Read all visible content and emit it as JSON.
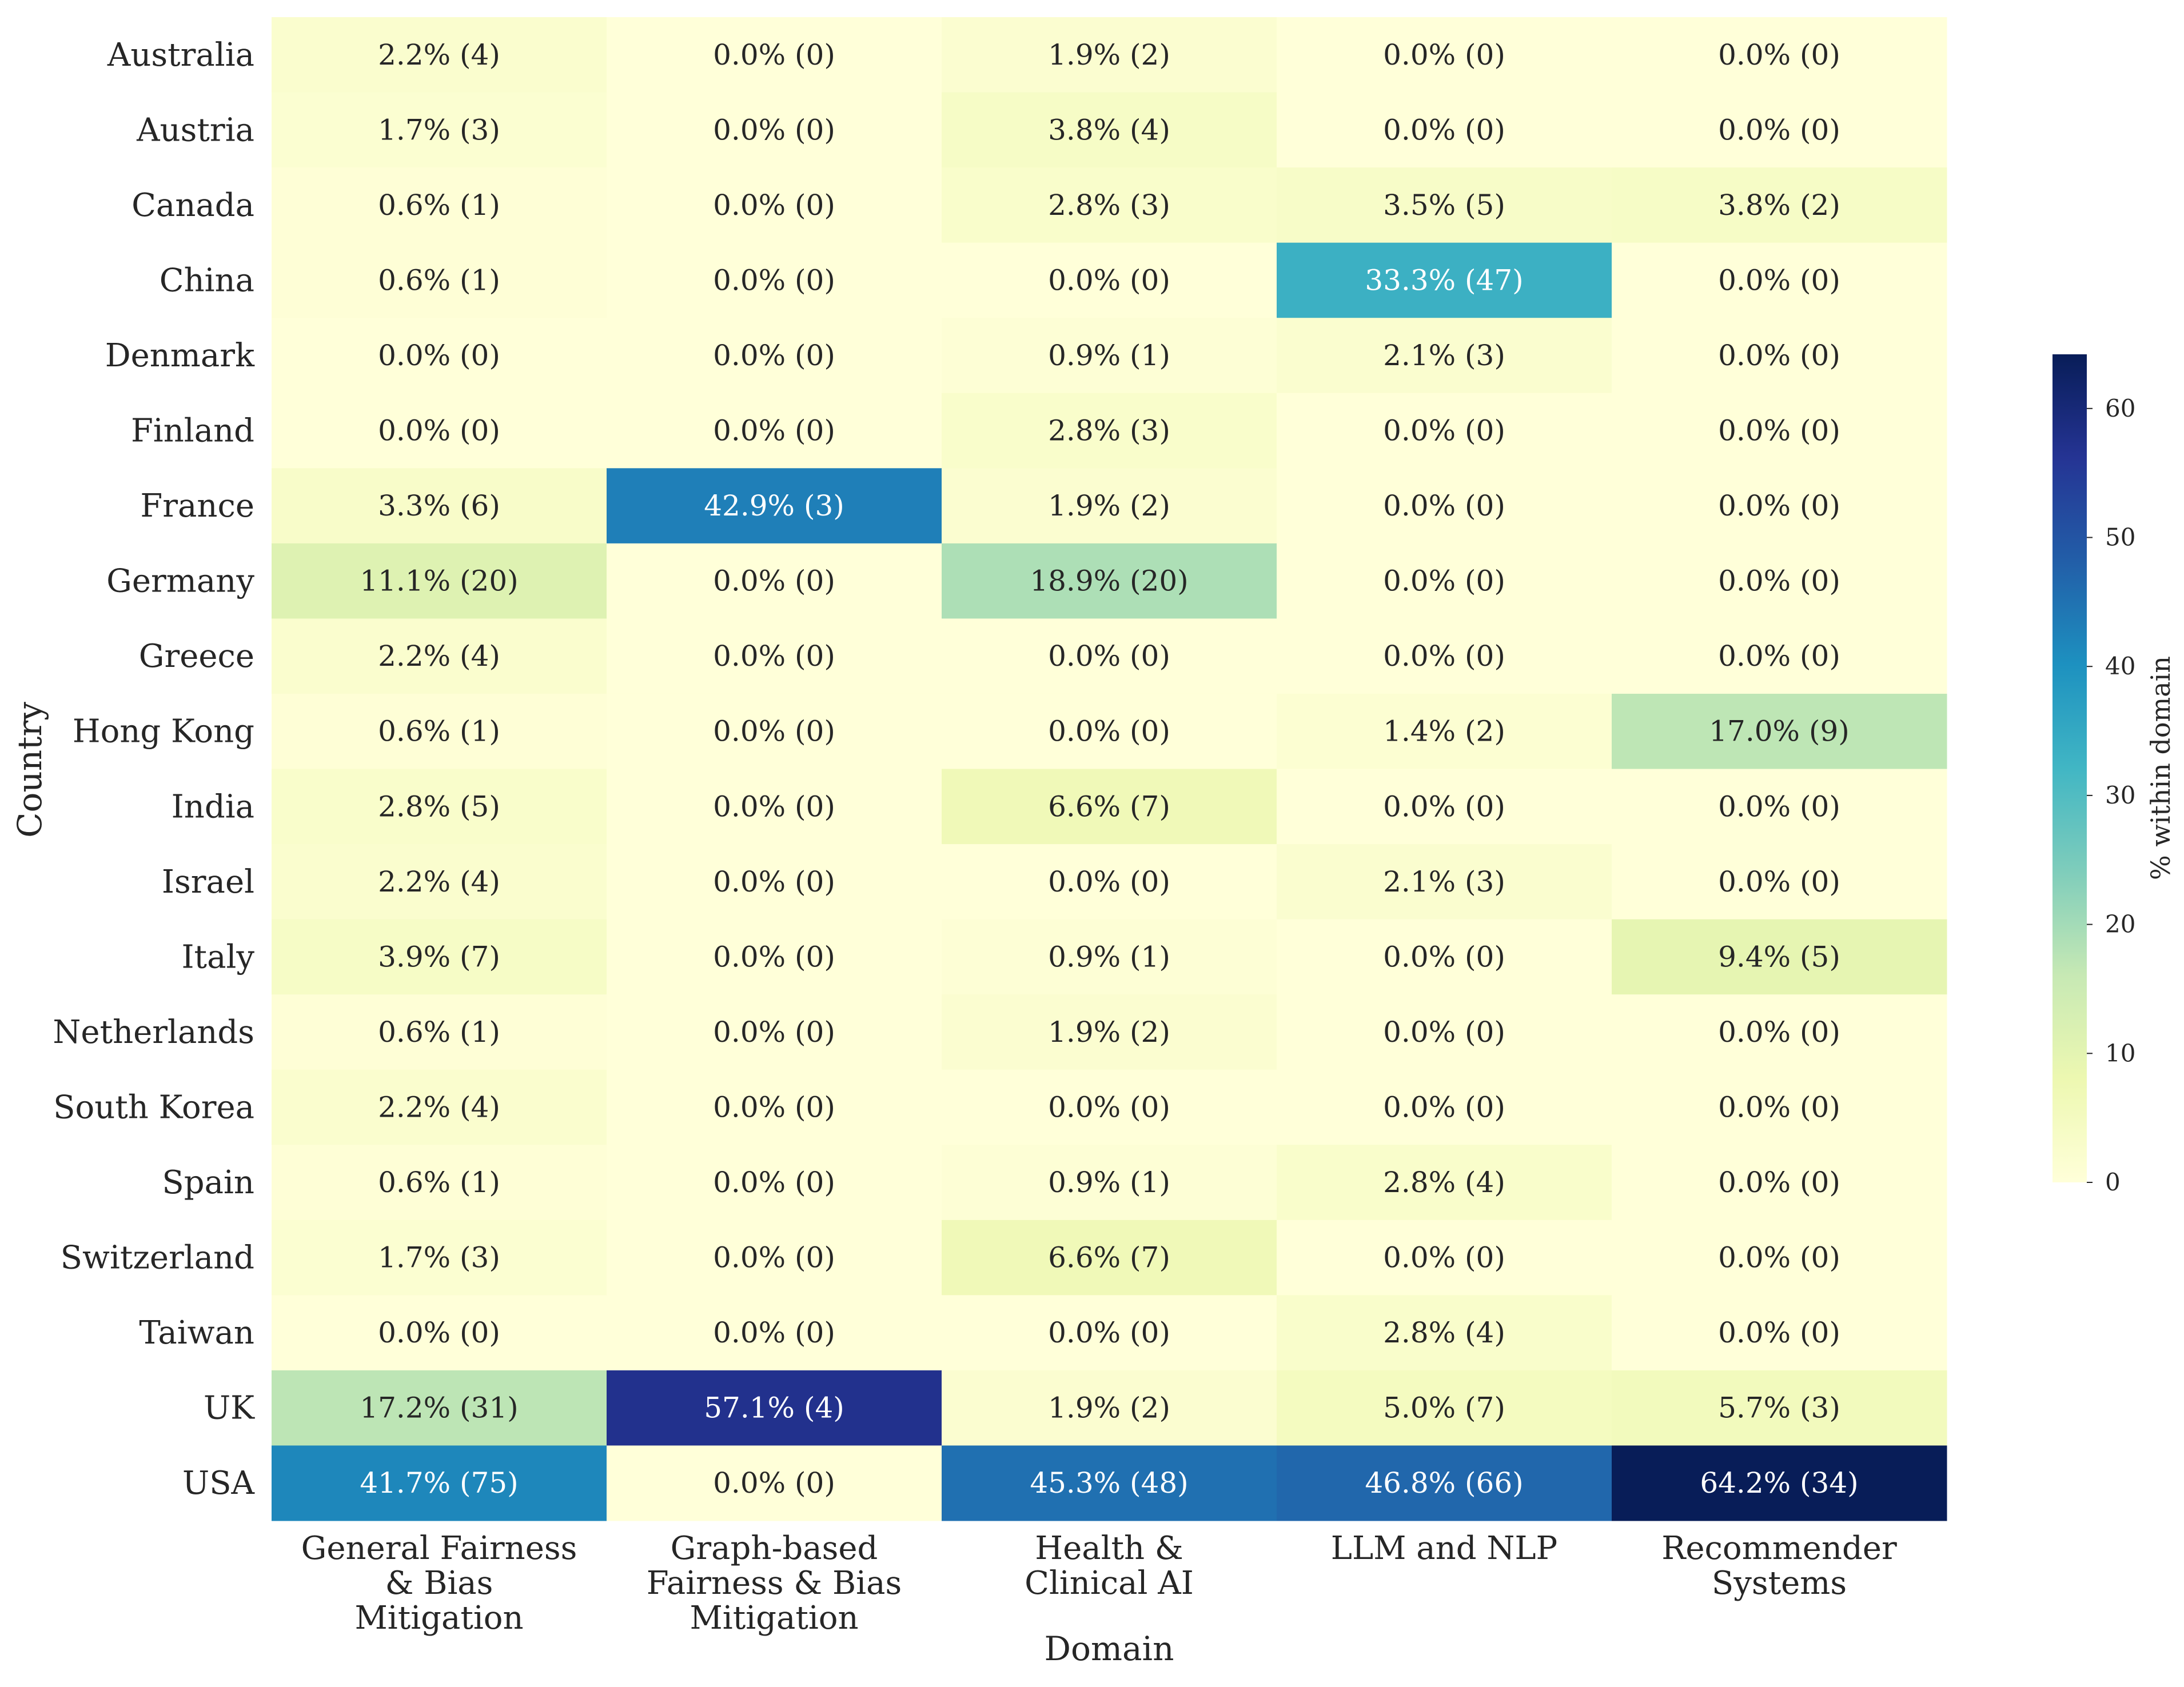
{
  "chart_data": {
    "type": "heatmap",
    "xlabel": "Domain",
    "ylabel": "Country",
    "columns": [
      [
        "General Fairness",
        "& Bias",
        "Mitigation"
      ],
      [
        "Graph-based",
        "Fairness & Bias",
        "Mitigation"
      ],
      [
        "Health &",
        "Clinical AI"
      ],
      [
        "LLM and NLP"
      ],
      [
        "Recommender",
        "Systems"
      ]
    ],
    "rows": [
      "Australia",
      "Austria",
      "Canada",
      "China",
      "Denmark",
      "Finland",
      "France",
      "Germany",
      "Greece",
      "Hong Kong",
      "India",
      "Israel",
      "Italy",
      "Netherlands",
      "South Korea",
      "Spain",
      "Switzerland",
      "Taiwan",
      "UK",
      "USA"
    ],
    "values": [
      [
        2.2,
        0.0,
        1.9,
        0.0,
        0.0
      ],
      [
        1.7,
        0.0,
        3.8,
        0.0,
        0.0
      ],
      [
        0.6,
        0.0,
        2.8,
        3.5,
        3.8
      ],
      [
        0.6,
        0.0,
        0.0,
        33.3,
        0.0
      ],
      [
        0.0,
        0.0,
        0.9,
        2.1,
        0.0
      ],
      [
        0.0,
        0.0,
        2.8,
        0.0,
        0.0
      ],
      [
        3.3,
        42.9,
        1.9,
        0.0,
        0.0
      ],
      [
        11.1,
        0.0,
        18.9,
        0.0,
        0.0
      ],
      [
        2.2,
        0.0,
        0.0,
        0.0,
        0.0
      ],
      [
        0.6,
        0.0,
        0.0,
        1.4,
        17.0
      ],
      [
        2.8,
        0.0,
        6.6,
        0.0,
        0.0
      ],
      [
        2.2,
        0.0,
        0.0,
        2.1,
        0.0
      ],
      [
        3.9,
        0.0,
        0.9,
        0.0,
        9.4
      ],
      [
        0.6,
        0.0,
        1.9,
        0.0,
        0.0
      ],
      [
        2.2,
        0.0,
        0.0,
        0.0,
        0.0
      ],
      [
        0.6,
        0.0,
        0.9,
        2.8,
        0.0
      ],
      [
        1.7,
        0.0,
        6.6,
        0.0,
        0.0
      ],
      [
        0.0,
        0.0,
        0.0,
        2.8,
        0.0
      ],
      [
        17.2,
        57.1,
        1.9,
        5.0,
        5.7
      ],
      [
        41.7,
        0.0,
        45.3,
        46.8,
        64.2
      ]
    ],
    "counts": [
      [
        4,
        0,
        2,
        0,
        0
      ],
      [
        3,
        0,
        4,
        0,
        0
      ],
      [
        1,
        0,
        3,
        5,
        2
      ],
      [
        1,
        0,
        0,
        47,
        0
      ],
      [
        0,
        0,
        1,
        3,
        0
      ],
      [
        0,
        0,
        3,
        0,
        0
      ],
      [
        6,
        3,
        2,
        0,
        0
      ],
      [
        20,
        0,
        20,
        0,
        0
      ],
      [
        4,
        0,
        0,
        0,
        0
      ],
      [
        1,
        0,
        0,
        2,
        9
      ],
      [
        5,
        0,
        7,
        0,
        0
      ],
      [
        4,
        0,
        0,
        3,
        0
      ],
      [
        7,
        0,
        1,
        0,
        5
      ],
      [
        1,
        0,
        2,
        0,
        0
      ],
      [
        4,
        0,
        0,
        0,
        0
      ],
      [
        1,
        0,
        1,
        4,
        0
      ],
      [
        3,
        0,
        7,
        0,
        0
      ],
      [
        0,
        0,
        0,
        4,
        0
      ],
      [
        31,
        4,
        2,
        7,
        3
      ],
      [
        75,
        0,
        48,
        66,
        34
      ]
    ],
    "colorbar": {
      "label": "% within domain",
      "range": [
        0,
        64.2
      ],
      "ticks": [
        0,
        10,
        20,
        30,
        40,
        50,
        60
      ],
      "colormap": "YlGnBu"
    },
    "grid": false
  }
}
